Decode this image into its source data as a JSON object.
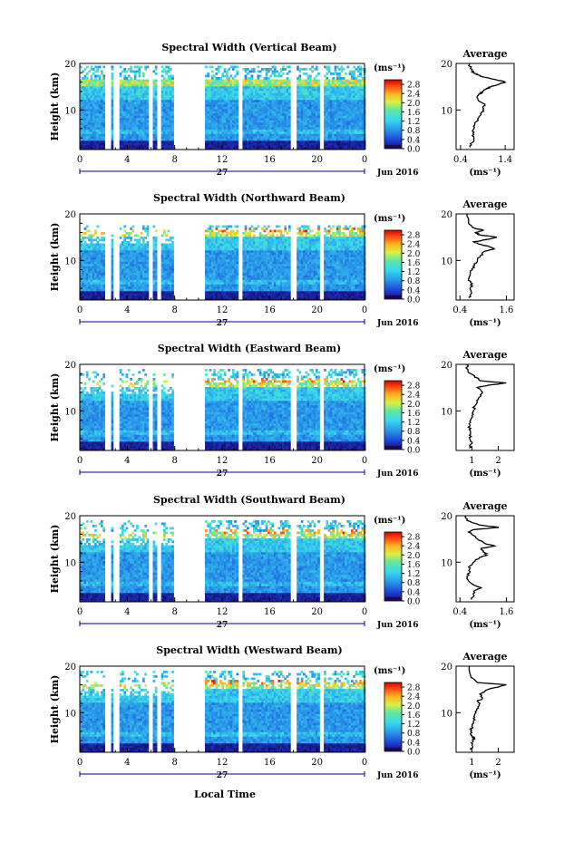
{
  "figure": {
    "date_label": "Jun 2016",
    "day_label": "27",
    "time_xlabel": "Local Time",
    "height_ylabel": "Height (km)",
    "avg_title": "Average",
    "unit_label": "(ms⁻¹)"
  },
  "chart_data": [
    {
      "type": "heatmap",
      "title": "Spectral Width (Vertical Beam)",
      "xlabel": "",
      "ylabel": "Height (km)",
      "xticks": [
        "0",
        "4",
        "8",
        "12",
        "16",
        "20",
        "0"
      ],
      "yticks": [
        "10",
        "20"
      ],
      "xlim": [
        0,
        24
      ],
      "ylim": [
        1.5,
        20
      ],
      "colorbar_ticks": [
        "0.0",
        "0.4",
        "0.8",
        "1.2",
        "1.6",
        "2.0",
        "2.4",
        "2.8"
      ],
      "colorbar_range": [
        0,
        3.0
      ],
      "average": {
        "type": "line",
        "title": "Average",
        "xlabel": "(ms⁻¹)",
        "yticks": [
          "10",
          "20"
        ],
        "xticks": [
          "0.4",
          "1.4"
        ],
        "xlim": [
          0.3,
          1.6
        ],
        "ylim": [
          1.5,
          20
        ],
        "x": [
          0.62,
          0.66,
          0.7,
          0.68,
          0.7,
          0.72,
          0.78,
          0.86,
          0.9,
          0.95,
          0.8,
          0.78,
          0.85,
          0.9,
          0.98,
          1.08,
          1.25,
          1.4,
          1.2,
          0.95,
          0.8,
          0.7,
          0.65,
          0.62,
          0.6
        ],
        "y": [
          2,
          3,
          4,
          5,
          6,
          7,
          8,
          9,
          10,
          11,
          12,
          13,
          13.5,
          14,
          14.5,
          15,
          15.5,
          16,
          16.5,
          17,
          17.5,
          18,
          18.5,
          19,
          20
        ]
      }
    },
    {
      "type": "heatmap",
      "title": "Spectral Width (Northward Beam)",
      "xlabel": "",
      "ylabel": "Height (km)",
      "xticks": [
        "0",
        "4",
        "8",
        "12",
        "16",
        "20",
        "0"
      ],
      "yticks": [
        "10",
        "20"
      ],
      "xlim": [
        0,
        24
      ],
      "ylim": [
        1.5,
        20
      ],
      "colorbar_ticks": [
        "0.0",
        "0.4",
        "0.8",
        "1.2",
        "1.6",
        "2.0",
        "2.4",
        "2.8"
      ],
      "colorbar_range": [
        0,
        3.0
      ],
      "average": {
        "type": "line",
        "title": "Average",
        "xlabel": "(ms⁻¹)",
        "yticks": [
          "10",
          "20"
        ],
        "xticks": [
          "0.4",
          "1.6"
        ],
        "xlim": [
          0.3,
          1.8
        ],
        "ylim": [
          1.5,
          20
        ],
        "x": [
          0.62,
          0.7,
          0.66,
          0.72,
          0.62,
          0.66,
          0.72,
          0.78,
          0.85,
          0.92,
          1.05,
          1.3,
          1.15,
          0.9,
          0.75,
          1.1,
          1.35,
          0.9,
          0.8,
          1.0,
          0.75,
          0.62,
          0.58
        ],
        "y": [
          2,
          3,
          4,
          5,
          6,
          7,
          8,
          9,
          10,
          11,
          12,
          12.5,
          13,
          13.5,
          14,
          14.5,
          15,
          15.5,
          16,
          16.5,
          17,
          18,
          20
        ]
      }
    },
    {
      "type": "heatmap",
      "title": "Spectral Width (Eastward Beam)",
      "xlabel": "",
      "ylabel": "Height (km)",
      "xticks": [
        "0",
        "4",
        "8",
        "12",
        "16",
        "20",
        "0"
      ],
      "yticks": [
        "10",
        "20"
      ],
      "xlim": [
        0,
        24
      ],
      "ylim": [
        1.5,
        20
      ],
      "colorbar_ticks": [
        "0.0",
        "0.4",
        "0.8",
        "1.2",
        "1.6",
        "2.0",
        "2.4",
        "2.8"
      ],
      "colorbar_range": [
        0,
        3.0
      ],
      "average": {
        "type": "line",
        "title": "Average",
        "xlabel": "(ms⁻¹)",
        "yticks": [
          "10",
          "20"
        ],
        "xticks": [
          "1",
          "2"
        ],
        "xlim": [
          0.4,
          2.6
        ],
        "ylim": [
          1.5,
          20
        ],
        "x": [
          0.9,
          1.0,
          0.92,
          0.95,
          0.9,
          0.92,
          0.95,
          1.0,
          1.05,
          1.1,
          1.2,
          1.3,
          1.4,
          1.2,
          1.6,
          2.3,
          1.3,
          1.1,
          0.85,
          0.8
        ],
        "y": [
          2,
          3,
          4,
          5,
          6,
          7,
          8,
          9,
          10,
          11,
          12,
          13,
          14,
          15,
          15.5,
          16,
          16.5,
          17.5,
          18.5,
          20
        ]
      }
    },
    {
      "type": "heatmap",
      "title": "Spectral Width (Southward Beam)",
      "xlabel": "",
      "ylabel": "Height (km)",
      "xticks": [
        "0",
        "4",
        "8",
        "12",
        "16",
        "20",
        "0"
      ],
      "yticks": [
        "10",
        "20"
      ],
      "xlim": [
        0,
        24
      ],
      "ylim": [
        1.5,
        20
      ],
      "colorbar_ticks": [
        "0.0",
        "0.4",
        "0.8",
        "1.2",
        "1.6",
        "2.0",
        "2.4",
        "2.8"
      ],
      "colorbar_range": [
        0,
        3.0
      ],
      "average": {
        "type": "line",
        "title": "Average",
        "xlabel": "(ms⁻¹)",
        "yticks": [
          "10",
          "20"
        ],
        "xticks": [
          "0.4",
          "1.6"
        ],
        "xlim": [
          0.3,
          1.8
        ],
        "ylim": [
          1.5,
          20
        ],
        "x": [
          0.7,
          0.75,
          0.8,
          0.95,
          0.78,
          0.62,
          0.58,
          0.66,
          0.62,
          0.75,
          0.9,
          1.1,
          1.05,
          0.95,
          1.3,
          1.05,
          0.85,
          0.7,
          0.62,
          0.75,
          1.4,
          0.9,
          0.58,
          0.55
        ],
        "y": [
          2,
          3,
          4,
          4.5,
          5,
          6,
          7,
          8,
          9,
          10,
          11,
          11.5,
          12,
          13,
          13.5,
          14,
          15,
          16,
          16.5,
          17,
          17.5,
          18,
          19,
          20
        ]
      }
    },
    {
      "type": "heatmap",
      "title": "Spectral Width (Westward Beam)",
      "xlabel": "Local Time",
      "ylabel": "Height (km)",
      "xticks": [
        "0",
        "4",
        "8",
        "12",
        "16",
        "20",
        "0"
      ],
      "yticks": [
        "10",
        "20"
      ],
      "xlim": [
        0,
        24
      ],
      "ylim": [
        1.5,
        20
      ],
      "colorbar_ticks": [
        "0.0",
        "0.4",
        "0.8",
        "1.2",
        "1.6",
        "2.0",
        "2.4",
        "2.8"
      ],
      "colorbar_range": [
        0,
        3.0
      ],
      "average": {
        "type": "line",
        "title": "Average",
        "xlabel": "(ms⁻¹)",
        "yticks": [
          "10",
          "20"
        ],
        "xticks": [
          "1",
          "2"
        ],
        "xlim": [
          0.4,
          2.6
        ],
        "ylim": [
          1.5,
          20
        ],
        "x": [
          0.95,
          1.0,
          1.05,
          1.1,
          1.0,
          0.95,
          1.0,
          1.05,
          1.1,
          1.15,
          1.25,
          1.3,
          1.2,
          1.4,
          1.3,
          1.6,
          2.3,
          1.2,
          0.95,
          0.9
        ],
        "y": [
          2,
          3,
          4,
          4.5,
          5,
          6,
          7,
          8,
          9,
          10,
          11,
          12,
          12.5,
          13,
          14,
          15,
          16,
          16.5,
          18,
          20
        ]
      }
    }
  ],
  "colors": {
    "axis": "#000000",
    "gap": "#ffffff",
    "date_axis": "#00008b"
  }
}
